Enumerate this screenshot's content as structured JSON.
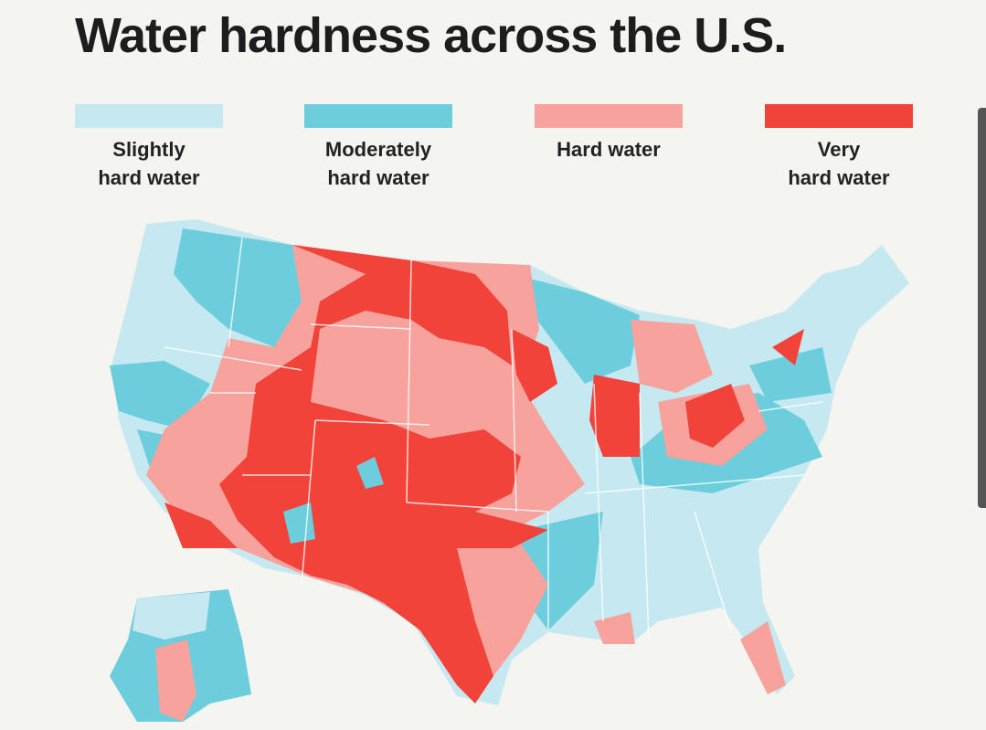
{
  "header": {
    "title": "Water hardness across the U.S."
  },
  "legend": [
    {
      "lines": [
        "Slightly",
        "hard water"
      ],
      "color": "#c6e9f1"
    },
    {
      "lines": [
        "Moderately",
        "hard water"
      ],
      "color": "#6ccddd"
    },
    {
      "lines": [
        "Hard water"
      ],
      "color": "#f8a29d"
    },
    {
      "lines": [
        "Very",
        "hard water"
      ],
      "color": "#f2433b"
    }
  ]
}
